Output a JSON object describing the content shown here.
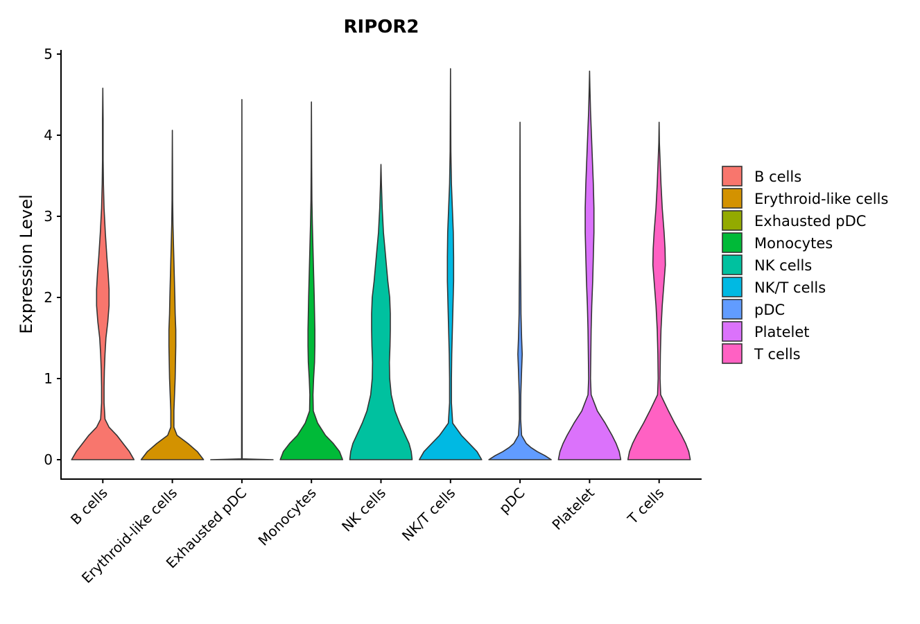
{
  "chart_data": {
    "type": "violin",
    "title": "RIPOR2",
    "xlabel": "",
    "ylabel": "Expression Level",
    "ylim": [
      0,
      5
    ],
    "yticks": [
      "0",
      "1",
      "2",
      "3",
      "4",
      "5"
    ],
    "ytick_values": [
      0,
      1,
      2,
      3,
      4,
      5
    ],
    "categories": [
      "B cells",
      "Erythroid-like cells",
      "Exhausted pDC",
      "Monocytes",
      "NK cells",
      "NK/T cells",
      "pDC",
      "Platelet",
      "T cells"
    ],
    "colors": [
      "#F8766D",
      "#D39200",
      "#93AA00",
      "#00BA38",
      "#00C19F",
      "#00B9E3",
      "#619CFF",
      "#DB72FB",
      "#FF61C3"
    ],
    "legend_position": "right",
    "series": [
      {
        "name": "B cells",
        "max": 4.58,
        "density": [
          [
            0,
            1.0
          ],
          [
            0.1,
            0.85
          ],
          [
            0.2,
            0.65
          ],
          [
            0.3,
            0.45
          ],
          [
            0.4,
            0.2
          ],
          [
            0.5,
            0.07
          ],
          [
            0.7,
            0.04
          ],
          [
            0.9,
            0.04
          ],
          [
            1.1,
            0.05
          ],
          [
            1.3,
            0.07
          ],
          [
            1.5,
            0.1
          ],
          [
            1.7,
            0.16
          ],
          [
            1.9,
            0.2
          ],
          [
            2.1,
            0.2
          ],
          [
            2.3,
            0.17
          ],
          [
            2.5,
            0.13
          ],
          [
            2.8,
            0.08
          ],
          [
            3.1,
            0.04
          ],
          [
            3.4,
            0.02
          ],
          [
            3.7,
            0.01
          ],
          [
            4.2,
            0.01
          ],
          [
            4.58,
            0.0
          ]
        ]
      },
      {
        "name": "Erythroid-like cells",
        "max": 4.06,
        "density": [
          [
            0,
            1.0
          ],
          [
            0.1,
            0.8
          ],
          [
            0.2,
            0.5
          ],
          [
            0.3,
            0.15
          ],
          [
            0.4,
            0.05
          ],
          [
            0.6,
            0.05
          ],
          [
            0.8,
            0.07
          ],
          [
            1.0,
            0.09
          ],
          [
            1.2,
            0.1
          ],
          [
            1.4,
            0.11
          ],
          [
            1.6,
            0.11
          ],
          [
            1.8,
            0.09
          ],
          [
            2.0,
            0.08
          ],
          [
            2.3,
            0.06
          ],
          [
            2.6,
            0.04
          ],
          [
            2.9,
            0.02
          ],
          [
            3.2,
            0.01
          ],
          [
            3.6,
            0.006
          ],
          [
            4.06,
            0.0
          ]
        ]
      },
      {
        "name": "Exhausted pDC",
        "max": 4.44,
        "density": [
          [
            0,
            1.0
          ],
          [
            0.005,
            0.5
          ],
          [
            0.01,
            0.01
          ],
          [
            4.44,
            0.0
          ]
        ]
      },
      {
        "name": "Monocytes",
        "max": 4.41,
        "density": [
          [
            0,
            1.0
          ],
          [
            0.1,
            0.9
          ],
          [
            0.2,
            0.7
          ],
          [
            0.3,
            0.45
          ],
          [
            0.45,
            0.2
          ],
          [
            0.6,
            0.06
          ],
          [
            0.8,
            0.05
          ],
          [
            1.0,
            0.07
          ],
          [
            1.2,
            0.1
          ],
          [
            1.4,
            0.11
          ],
          [
            1.6,
            0.11
          ],
          [
            1.8,
            0.1
          ],
          [
            2.0,
            0.09
          ],
          [
            2.3,
            0.07
          ],
          [
            2.6,
            0.05
          ],
          [
            2.9,
            0.03
          ],
          [
            3.2,
            0.015
          ],
          [
            3.6,
            0.008
          ],
          [
            4.41,
            0.0
          ]
        ]
      },
      {
        "name": "NK cells",
        "max": 3.64,
        "density": [
          [
            0,
            1.0
          ],
          [
            0.1,
            0.97
          ],
          [
            0.2,
            0.9
          ],
          [
            0.3,
            0.78
          ],
          [
            0.45,
            0.6
          ],
          [
            0.6,
            0.45
          ],
          [
            0.8,
            0.33
          ],
          [
            1.0,
            0.28
          ],
          [
            1.2,
            0.27
          ],
          [
            1.4,
            0.29
          ],
          [
            1.6,
            0.3
          ],
          [
            1.8,
            0.3
          ],
          [
            2.0,
            0.28
          ],
          [
            2.2,
            0.22
          ],
          [
            2.5,
            0.15
          ],
          [
            2.8,
            0.08
          ],
          [
            3.1,
            0.04
          ],
          [
            3.4,
            0.015
          ],
          [
            3.64,
            0.0
          ]
        ]
      },
      {
        "name": "NK/T cells",
        "max": 4.82,
        "density": [
          [
            0,
            1.0
          ],
          [
            0.1,
            0.85
          ],
          [
            0.2,
            0.6
          ],
          [
            0.3,
            0.35
          ],
          [
            0.45,
            0.07
          ],
          [
            0.7,
            0.03
          ],
          [
            1.0,
            0.03
          ],
          [
            1.3,
            0.04
          ],
          [
            1.6,
            0.06
          ],
          [
            1.9,
            0.08
          ],
          [
            2.2,
            0.1
          ],
          [
            2.5,
            0.1
          ],
          [
            2.8,
            0.09
          ],
          [
            3.1,
            0.06
          ],
          [
            3.4,
            0.03
          ],
          [
            3.8,
            0.012
          ],
          [
            4.3,
            0.006
          ],
          [
            4.82,
            0.0
          ]
        ]
      },
      {
        "name": "pDC",
        "max": 4.16,
        "density": [
          [
            0,
            1.0
          ],
          [
            0.05,
            0.8
          ],
          [
            0.1,
            0.55
          ],
          [
            0.15,
            0.35
          ],
          [
            0.2,
            0.2
          ],
          [
            0.3,
            0.05
          ],
          [
            0.5,
            0.02
          ],
          [
            0.8,
            0.025
          ],
          [
            1.1,
            0.05
          ],
          [
            1.3,
            0.07
          ],
          [
            1.5,
            0.05
          ],
          [
            1.8,
            0.03
          ],
          [
            2.1,
            0.025
          ],
          [
            2.5,
            0.015
          ],
          [
            3.0,
            0.008
          ],
          [
            3.5,
            0.005
          ],
          [
            4.16,
            0.0
          ]
        ]
      },
      {
        "name": "Platelet",
        "max": 4.79,
        "density": [
          [
            0,
            1.0
          ],
          [
            0.1,
            0.95
          ],
          [
            0.2,
            0.85
          ],
          [
            0.3,
            0.72
          ],
          [
            0.45,
            0.5
          ],
          [
            0.6,
            0.25
          ],
          [
            0.8,
            0.05
          ],
          [
            1.0,
            0.03
          ],
          [
            1.3,
            0.04
          ],
          [
            1.6,
            0.05
          ],
          [
            1.9,
            0.07
          ],
          [
            2.2,
            0.1
          ],
          [
            2.5,
            0.12
          ],
          [
            2.8,
            0.14
          ],
          [
            3.1,
            0.14
          ],
          [
            3.4,
            0.12
          ],
          [
            3.7,
            0.09
          ],
          [
            4.0,
            0.06
          ],
          [
            4.3,
            0.03
          ],
          [
            4.6,
            0.01
          ],
          [
            4.79,
            0.0
          ]
        ]
      },
      {
        "name": "T cells",
        "max": 4.16,
        "density": [
          [
            0,
            1.0
          ],
          [
            0.1,
            0.95
          ],
          [
            0.2,
            0.85
          ],
          [
            0.3,
            0.72
          ],
          [
            0.45,
            0.5
          ],
          [
            0.6,
            0.3
          ],
          [
            0.8,
            0.05
          ],
          [
            1.0,
            0.03
          ],
          [
            1.3,
            0.04
          ],
          [
            1.6,
            0.06
          ],
          [
            1.9,
            0.1
          ],
          [
            2.2,
            0.16
          ],
          [
            2.4,
            0.2
          ],
          [
            2.6,
            0.19
          ],
          [
            2.8,
            0.16
          ],
          [
            3.1,
            0.1
          ],
          [
            3.4,
            0.06
          ],
          [
            3.7,
            0.03
          ],
          [
            3.9,
            0.01
          ],
          [
            4.16,
            0.0
          ]
        ]
      }
    ]
  }
}
